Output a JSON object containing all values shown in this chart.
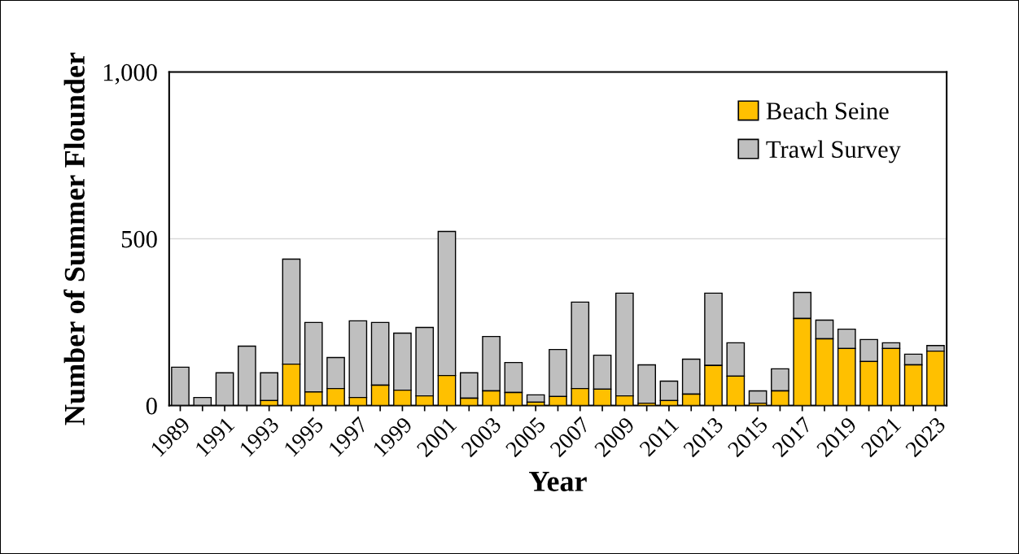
{
  "chart_data": {
    "type": "bar",
    "stacked": true,
    "xlabel": "Year",
    "ylabel": "Number of Summer Flounder",
    "categories": [
      "1989",
      null,
      "1991",
      null,
      "1993",
      null,
      "1995",
      null,
      "1997",
      null,
      "1999",
      null,
      "2001",
      null,
      "2003",
      null,
      "2005",
      null,
      "2007",
      null,
      "2009",
      null,
      "2011",
      null,
      "2013",
      null,
      "2015",
      null,
      "2017",
      null,
      "2019",
      null,
      "2021",
      null,
      "2023"
    ],
    "series": [
      {
        "name": "Beach Seine",
        "color": "#ffc000",
        "values": [
          0,
          0,
          0,
          0,
          15,
          124,
          41,
          51,
          24,
          61,
          46,
          29,
          90,
          22,
          44,
          39,
          10,
          27,
          51,
          49,
          29,
          7,
          15,
          34,
          120,
          88,
          7,
          44,
          261,
          200,
          171,
          132,
          171,
          122,
          163
        ]
      },
      {
        "name": "Trawl Survey",
        "color": "#bfbfbf",
        "values": [
          115,
          24,
          98,
          178,
          83,
          315,
          208,
          93,
          230,
          188,
          171,
          205,
          432,
          76,
          163,
          90,
          22,
          141,
          259,
          102,
          308,
          115,
          58,
          105,
          217,
          100,
          37,
          66,
          78,
          56,
          58,
          66,
          17,
          32,
          17
        ]
      }
    ],
    "ylim": [
      0,
      1000
    ],
    "yticks": [
      0,
      500,
      {
        "value": 1000,
        "label": "1,000"
      }
    ],
    "grid": "y",
    "legend": "top right"
  }
}
